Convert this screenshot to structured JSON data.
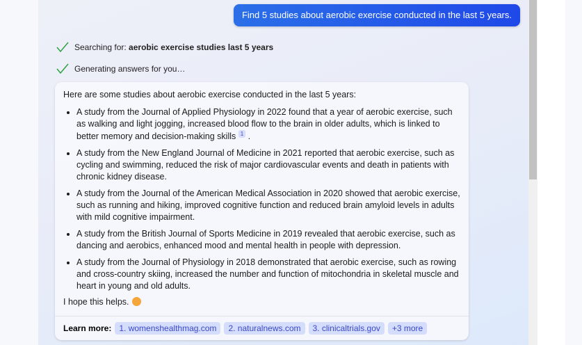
{
  "user_message": "Find 5 studies about aerobic exercise conducted in the last 5 years.",
  "status": [
    {
      "prefix": "Searching for: ",
      "bold": "aerobic exercise studies last 5 years",
      "icon": "check-icon"
    },
    {
      "prefix": "Generating answers for you…",
      "bold": "",
      "icon": "check-icon"
    }
  ],
  "answer": {
    "intro": "Here are some studies about aerobic exercise conducted in the last 5 years:",
    "items": [
      "A study from the Journal of Applied Physiology in 2022 found that a year of aerobic exercise, such as walking and light jogging, increased blood flow to the brain in older adults, which is linked to better memory and decision-making skills",
      "A study from the New England Journal of Medicine in 2021 reported that aerobic exercise, such as cycling and swimming, reduced the risk of major cardiovascular events and death in patients with chronic kidney disease.",
      "A study from the Journal of the American Medical Association in 2020 showed that aerobic exercise, such as running and hiking, improved cognitive function and reduced brain amyloid levels in adults with mild cognitive impairment.",
      "A study from the British Journal of Sports Medicine in 2019 revealed that aerobic exercise, such as dancing and aerobics, enhanced mood and mental health in people with depression.",
      "A study from the Journal of Physiology in 2018 demonstrated that aerobic exercise, such as rowing and cross-country skiing, increased the number and function of mitochondria in skeletal muscle and heart in young and old adults."
    ],
    "citation": "1",
    "outro": "I hope this helps."
  },
  "learn_more": {
    "label": "Learn more:",
    "links": [
      "1. womenshealthmag.com",
      "2. naturalnews.com",
      "3. clinicaltrials.gov",
      "+3 more"
    ]
  },
  "colors": {
    "accent": "#1f48e8",
    "check": "#2ea043",
    "chip": "#d4ddfb"
  }
}
